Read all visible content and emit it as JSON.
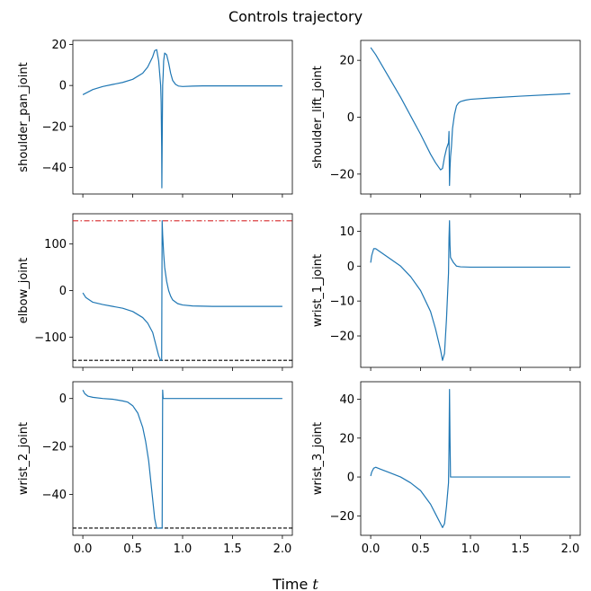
{
  "figure": {
    "title": "Controls trajectory",
    "xlabel": "Time",
    "xlabel_var": "t"
  },
  "chart_data": [
    {
      "type": "line",
      "ylabel": "shoulder_pan_joint",
      "xlim": [
        -0.1,
        2.1
      ],
      "ylim": [
        -53,
        22
      ],
      "xticks": [
        0.0,
        0.5,
        1.0,
        1.5,
        2.0
      ],
      "yticks": [
        20,
        0,
        -20,
        -40
      ],
      "series": [
        {
          "color": "#1f77b4",
          "x": [
            0,
            0.1,
            0.2,
            0.3,
            0.4,
            0.5,
            0.6,
            0.65,
            0.7,
            0.72,
            0.74,
            0.76,
            0.78,
            0.785,
            0.79,
            0.792,
            0.795,
            0.8,
            0.805,
            0.81,
            0.82,
            0.84,
            0.86,
            0.88,
            0.9,
            0.93,
            0.96,
            1.0,
            1.1,
            1.2,
            1.5,
            2.0
          ],
          "y": [
            -4.5,
            -2,
            -0.5,
            0.5,
            1.5,
            3,
            6,
            9,
            14,
            17,
            17.5,
            12,
            0,
            -8,
            -30,
            -50,
            -30,
            0,
            5,
            12,
            15.8,
            15,
            11,
            6,
            2.5,
            0.5,
            -0.3,
            -0.5,
            -0.3,
            -0.2,
            -0.2,
            -0.2
          ]
        }
      ],
      "hlines": []
    },
    {
      "type": "line",
      "ylabel": "shoulder_lift_joint",
      "xlim": [
        -0.1,
        2.1
      ],
      "ylim": [
        -27,
        27
      ],
      "xticks": [
        0.0,
        0.5,
        1.0,
        1.5,
        2.0
      ],
      "yticks": [
        20,
        0,
        -20
      ],
      "series": [
        {
          "color": "#1f77b4",
          "x": [
            0,
            0.05,
            0.1,
            0.2,
            0.3,
            0.4,
            0.5,
            0.6,
            0.65,
            0.7,
            0.72,
            0.74,
            0.76,
            0.78,
            0.785,
            0.79,
            0.795,
            0.8,
            0.81,
            0.82,
            0.84,
            0.86,
            0.88,
            0.9,
            0.95,
            1.0,
            1.2,
            1.5,
            2.0
          ],
          "y": [
            24.5,
            22,
            19,
            13,
            7,
            0.5,
            -6,
            -13,
            -16,
            -18.5,
            -18,
            -14,
            -11,
            -9,
            -5,
            -24,
            -18,
            -14,
            -10,
            -4,
            1,
            4,
            5,
            5.5,
            6,
            6.3,
            6.8,
            7.4,
            8.3
          ]
        }
      ],
      "hlines": []
    },
    {
      "type": "line",
      "ylabel": "elbow_joint",
      "xlim": [
        -0.1,
        2.1
      ],
      "ylim": [
        -165,
        165
      ],
      "xticks": [
        0.0,
        0.5,
        1.0,
        1.5,
        2.0
      ],
      "yticks": [
        100,
        0,
        -100
      ],
      "series": [
        {
          "color": "#1f77b4",
          "x": [
            0,
            0.03,
            0.1,
            0.2,
            0.3,
            0.4,
            0.5,
            0.6,
            0.65,
            0.7,
            0.73,
            0.76,
            0.78,
            0.79,
            0.795,
            0.8,
            0.81,
            0.82,
            0.84,
            0.86,
            0.88,
            0.9,
            0.95,
            1.0,
            1.1,
            1.3,
            1.5,
            2.0
          ],
          "y": [
            -5,
            -15,
            -25,
            -30,
            -34,
            -38,
            -45,
            -58,
            -70,
            -90,
            -115,
            -140,
            -150,
            -150,
            150,
            120,
            80,
            50,
            20,
            0,
            -12,
            -20,
            -28,
            -31,
            -33,
            -34,
            -34,
            -34
          ]
        }
      ],
      "hlines": [
        {
          "y": 150,
          "color": "#d62728",
          "style": "dashdot"
        },
        {
          "y": -150,
          "color": "#000000",
          "style": "dashed"
        }
      ]
    },
    {
      "type": "line",
      "ylabel": "wrist_1_joint",
      "xlim": [
        -0.1,
        2.1
      ],
      "ylim": [
        -29,
        15
      ],
      "xticks": [
        0.0,
        0.5,
        1.0,
        1.5,
        2.0
      ],
      "yticks": [
        10,
        0,
        -10,
        -20
      ],
      "series": [
        {
          "color": "#1f77b4",
          "x": [
            0,
            0.01,
            0.03,
            0.05,
            0.1,
            0.2,
            0.3,
            0.4,
            0.5,
            0.6,
            0.65,
            0.7,
            0.72,
            0.74,
            0.76,
            0.78,
            0.785,
            0.79,
            0.795,
            0.8,
            0.81,
            0.83,
            0.86,
            0.9,
            1.0,
            1.5,
            2.0
          ],
          "y": [
            1,
            3,
            5,
            5,
            4,
            2,
            0,
            -3,
            -7,
            -13,
            -18,
            -24,
            -27,
            -25,
            -15,
            -2,
            8,
            13,
            6,
            2.5,
            2,
            1,
            0,
            -0.2,
            -0.3,
            -0.3,
            -0.3
          ]
        }
      ],
      "hlines": []
    },
    {
      "type": "line",
      "ylabel": "wrist_2_joint",
      "xlim": [
        -0.1,
        2.1
      ],
      "ylim": [
        -57,
        7
      ],
      "xticks": [
        0.0,
        0.5,
        1.0,
        1.5,
        2.0
      ],
      "yticks": [
        0,
        -20,
        -40
      ],
      "series": [
        {
          "color": "#1f77b4",
          "x": [
            0,
            0.02,
            0.05,
            0.1,
            0.2,
            0.3,
            0.4,
            0.45,
            0.5,
            0.55,
            0.6,
            0.63,
            0.66,
            0.68,
            0.7,
            0.72,
            0.74,
            0.77,
            0.795,
            0.8,
            0.805,
            0.81,
            1.0,
            1.5,
            2.0
          ],
          "y": [
            3.5,
            2,
            1,
            0.5,
            0,
            -0.3,
            -1,
            -1.5,
            -3,
            -6,
            -12,
            -18,
            -26,
            -34,
            -42,
            -50,
            -54,
            -54,
            -54,
            3.5,
            0,
            0,
            0,
            0,
            0
          ]
        }
      ],
      "hlines": [
        {
          "y": -54,
          "color": "#000000",
          "style": "dashed"
        }
      ]
    },
    {
      "type": "line",
      "ylabel": "wrist_3_joint",
      "xlim": [
        -0.1,
        2.1
      ],
      "ylim": [
        -30,
        49
      ],
      "xticks": [
        0.0,
        0.5,
        1.0,
        1.5,
        2.0
      ],
      "yticks": [
        40,
        20,
        0,
        -20
      ],
      "series": [
        {
          "color": "#1f77b4",
          "x": [
            0,
            0.01,
            0.03,
            0.05,
            0.1,
            0.2,
            0.3,
            0.4,
            0.5,
            0.6,
            0.65,
            0.7,
            0.72,
            0.74,
            0.76,
            0.78,
            0.785,
            0.79,
            0.795,
            0.8,
            0.81,
            0.85,
            1.0,
            1.5,
            2.0
          ],
          "y": [
            0.5,
            2.5,
            4.5,
            5,
            4,
            2,
            0,
            -3,
            -7,
            -14,
            -19,
            -24,
            -26,
            -24,
            -15,
            -3,
            15,
            45,
            20,
            0,
            0,
            0,
            0,
            0,
            0
          ]
        }
      ],
      "hlines": []
    }
  ]
}
